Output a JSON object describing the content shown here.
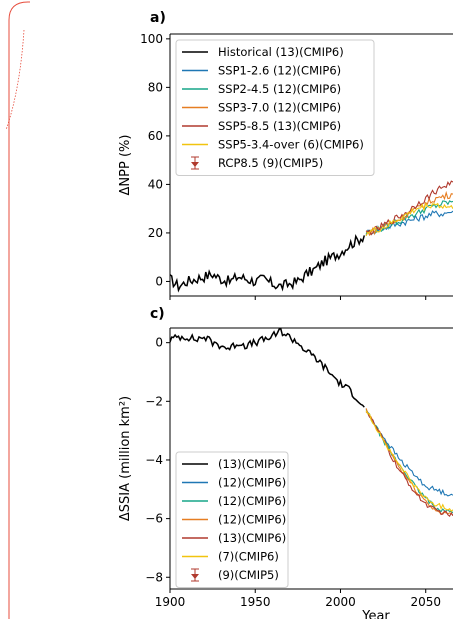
{
  "chart_data": [
    {
      "type": "line",
      "panel_label": "a)",
      "ylabel": "ΔNPP (%)",
      "ylim": [
        -6,
        102
      ],
      "xlim": [
        1900,
        2066
      ],
      "yticks": [
        0,
        20,
        40,
        60,
        80,
        100
      ],
      "legend": "top-left",
      "series": [
        {
          "name": "Historical (13)(CMIP6)",
          "color": "#000000",
          "x": [
            1900,
            1905,
            1910,
            1915,
            1920,
            1925,
            1930,
            1935,
            1940,
            1945,
            1950,
            1955,
            1960,
            1965,
            1970,
            1975,
            1980,
            1985,
            1990,
            1995,
            2000,
            2005,
            2010,
            2014
          ],
          "y": [
            1,
            -2,
            0,
            1,
            2,
            3,
            1,
            0,
            2,
            1,
            0,
            1,
            -1,
            -2,
            -1,
            0,
            3,
            5,
            8,
            10,
            12,
            15,
            17,
            19
          ]
        },
        {
          "name": "SSP1-2.6 (12)(CMIP6)",
          "color": "#1f77b4",
          "x": [
            2015,
            2020,
            2025,
            2030,
            2035,
            2040,
            2045,
            2050,
            2055,
            2060,
            2066
          ],
          "y": [
            20,
            21,
            22,
            23,
            24,
            25,
            26,
            27,
            28,
            28,
            29
          ]
        },
        {
          "name": "SSP2-4.5 (12)(CMIP6)",
          "color": "#17a589",
          "x": [
            2015,
            2020,
            2025,
            2030,
            2035,
            2040,
            2045,
            2050,
            2055,
            2060,
            2066
          ],
          "y": [
            20,
            21,
            22,
            24,
            25,
            27,
            28,
            30,
            31,
            32,
            33
          ]
        },
        {
          "name": "SSP3-7.0 (12)(CMIP6)",
          "color": "#e67e22",
          "x": [
            2015,
            2020,
            2025,
            2030,
            2035,
            2040,
            2045,
            2050,
            2055,
            2060,
            2066
          ],
          "y": [
            20,
            21,
            23,
            24,
            26,
            28,
            30,
            32,
            34,
            35,
            36
          ]
        },
        {
          "name": "SSP5-8.5 (13)(CMIP6)",
          "color": "#b03a2e",
          "x": [
            2015,
            2020,
            2025,
            2030,
            2035,
            2040,
            2045,
            2050,
            2055,
            2060,
            2066
          ],
          "y": [
            20,
            21,
            23,
            25,
            27,
            29,
            32,
            34,
            37,
            39,
            41
          ]
        },
        {
          "name": "SSP5-3.4-over (6)(CMIP6)",
          "color": "#f1c40f",
          "x": [
            2015,
            2020,
            2025,
            2030,
            2035,
            2040,
            2045,
            2050,
            2055,
            2060,
            2066
          ],
          "y": [
            20,
            21,
            22,
            24,
            26,
            28,
            30,
            31,
            32,
            31,
            30
          ]
        }
      ],
      "legend_marker_entry": {
        "name": "RCP8.5 (9)(CMIP5)",
        "color": "#b03a2e"
      }
    },
    {
      "type": "line",
      "panel_label": "c)",
      "xlabel": "Year",
      "ylabel": "ΔSSIA (million km²)",
      "ylim": [
        -8.4,
        0.5
      ],
      "xlim": [
        1900,
        2066
      ],
      "xticks": [
        1900,
        1950,
        2000,
        2050
      ],
      "yticks": [
        0,
        -2,
        -4,
        -6,
        -8
      ],
      "ytick_labels": [
        "0",
        "−2",
        "−4",
        "−6",
        "−8"
      ],
      "legend": "bottom-left",
      "series": [
        {
          "name": "(13)(CMIP6)",
          "color": "#000000",
          "x": [
            1900,
            1905,
            1910,
            1915,
            1920,
            1925,
            1930,
            1935,
            1940,
            1945,
            1950,
            1955,
            1960,
            1965,
            1970,
            1975,
            1980,
            1985,
            1990,
            1995,
            2000,
            2005,
            2010,
            2014
          ],
          "y": [
            0.1,
            0.2,
            0.2,
            0.1,
            0.2,
            0,
            -0.1,
            -0.2,
            0,
            -0.1,
            0,
            0.1,
            0.2,
            0.4,
            0.2,
            0,
            -0.3,
            -0.5,
            -0.8,
            -1.1,
            -1.4,
            -1.6,
            -1.9,
            -2.2
          ]
        },
        {
          "name": "(12)(CMIP6)",
          "color": "#1f77b4",
          "x": [
            2015,
            2020,
            2025,
            2030,
            2035,
            2040,
            2045,
            2050,
            2055,
            2060,
            2066
          ],
          "y": [
            -2.3,
            -2.8,
            -3.2,
            -3.6,
            -4.0,
            -4.3,
            -4.6,
            -4.9,
            -5.0,
            -5.1,
            -5.2
          ]
        },
        {
          "name": "(12)(CMIP6)",
          "color": "#17a589",
          "x": [
            2015,
            2020,
            2025,
            2030,
            2035,
            2040,
            2045,
            2050,
            2055,
            2060,
            2066
          ],
          "y": [
            -2.3,
            -2.8,
            -3.3,
            -3.8,
            -4.2,
            -4.6,
            -5.0,
            -5.3,
            -5.6,
            -5.7,
            -5.8
          ]
        },
        {
          "name": "(12)(CMIP6)",
          "color": "#e67e22",
          "x": [
            2015,
            2020,
            2025,
            2030,
            2035,
            2040,
            2045,
            2050,
            2055,
            2060,
            2066
          ],
          "y": [
            -2.3,
            -2.8,
            -3.3,
            -3.8,
            -4.3,
            -4.7,
            -5.1,
            -5.4,
            -5.7,
            -5.8,
            -5.9
          ]
        },
        {
          "name": "(13)(CMIP6)",
          "color": "#b03a2e",
          "x": [
            2015,
            2020,
            2025,
            2030,
            2035,
            2040,
            2045,
            2050,
            2055,
            2060,
            2066
          ],
          "y": [
            -2.3,
            -2.8,
            -3.3,
            -3.9,
            -4.4,
            -4.8,
            -5.2,
            -5.5,
            -5.7,
            -5.8,
            -5.9
          ]
        },
        {
          "name": "(7)(CMIP6)",
          "color": "#f1c40f",
          "x": [
            2015,
            2020,
            2025,
            2030,
            2035,
            2040,
            2045,
            2050,
            2055,
            2060,
            2066
          ],
          "y": [
            -2.3,
            -2.8,
            -3.3,
            -3.8,
            -4.2,
            -4.6,
            -5.0,
            -5.3,
            -5.5,
            -5.6,
            -5.7
          ]
        }
      ],
      "legend_marker_entry": {
        "name": "(9)(CMIP5)",
        "color": "#b03a2e"
      }
    }
  ]
}
